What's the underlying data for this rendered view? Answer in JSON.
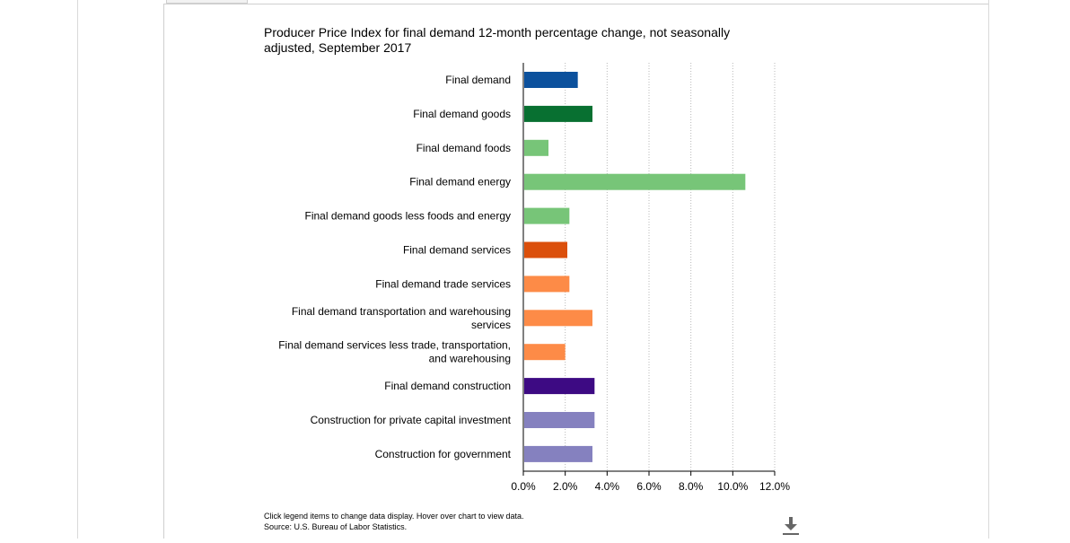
{
  "chart_data": {
    "type": "bar",
    "orientation": "horizontal",
    "title": "Producer Price Index for final demand 12-month percentage change, not seasonally adjusted, September 2017",
    "xlabel": "",
    "ylabel": "",
    "xlim": [
      0,
      12
    ],
    "x_ticks": [
      "0.0%",
      "2.0%",
      "4.0%",
      "6.0%",
      "8.0%",
      "10.0%",
      "12.0%"
    ],
    "grid": "vertical dotted",
    "categories": [
      [
        "Final demand"
      ],
      [
        "Final demand goods"
      ],
      [
        "Final demand foods"
      ],
      [
        "Final demand energy"
      ],
      [
        "Final demand goods less foods and energy"
      ],
      [
        "Final demand services"
      ],
      [
        "Final demand trade services"
      ],
      [
        "Final demand transportation and warehousing",
        "services"
      ],
      [
        "Final demand services less trade, transportation,",
        "and warehousing"
      ],
      [
        "Final demand construction"
      ],
      [
        "Construction for private capital investment"
      ],
      [
        "Construction for government"
      ]
    ],
    "values": [
      2.6,
      3.3,
      1.2,
      10.6,
      2.2,
      2.1,
      2.2,
      3.3,
      2.0,
      3.4,
      3.4,
      3.3
    ],
    "colors": [
      "#0c519d",
      "#087031",
      "#77c578",
      "#77c578",
      "#77c578",
      "#db4f0b",
      "#fd8b47",
      "#fd8b47",
      "#fd8b47",
      "#3d0a83",
      "#8581bf",
      "#8581bf"
    ]
  },
  "footnote": {
    "line1": "Click legend items to change data display. Hover over chart to view data.",
    "line2": "Source: U.S. Bureau of Labor Statistics."
  },
  "icons": {
    "download": "download-icon"
  }
}
